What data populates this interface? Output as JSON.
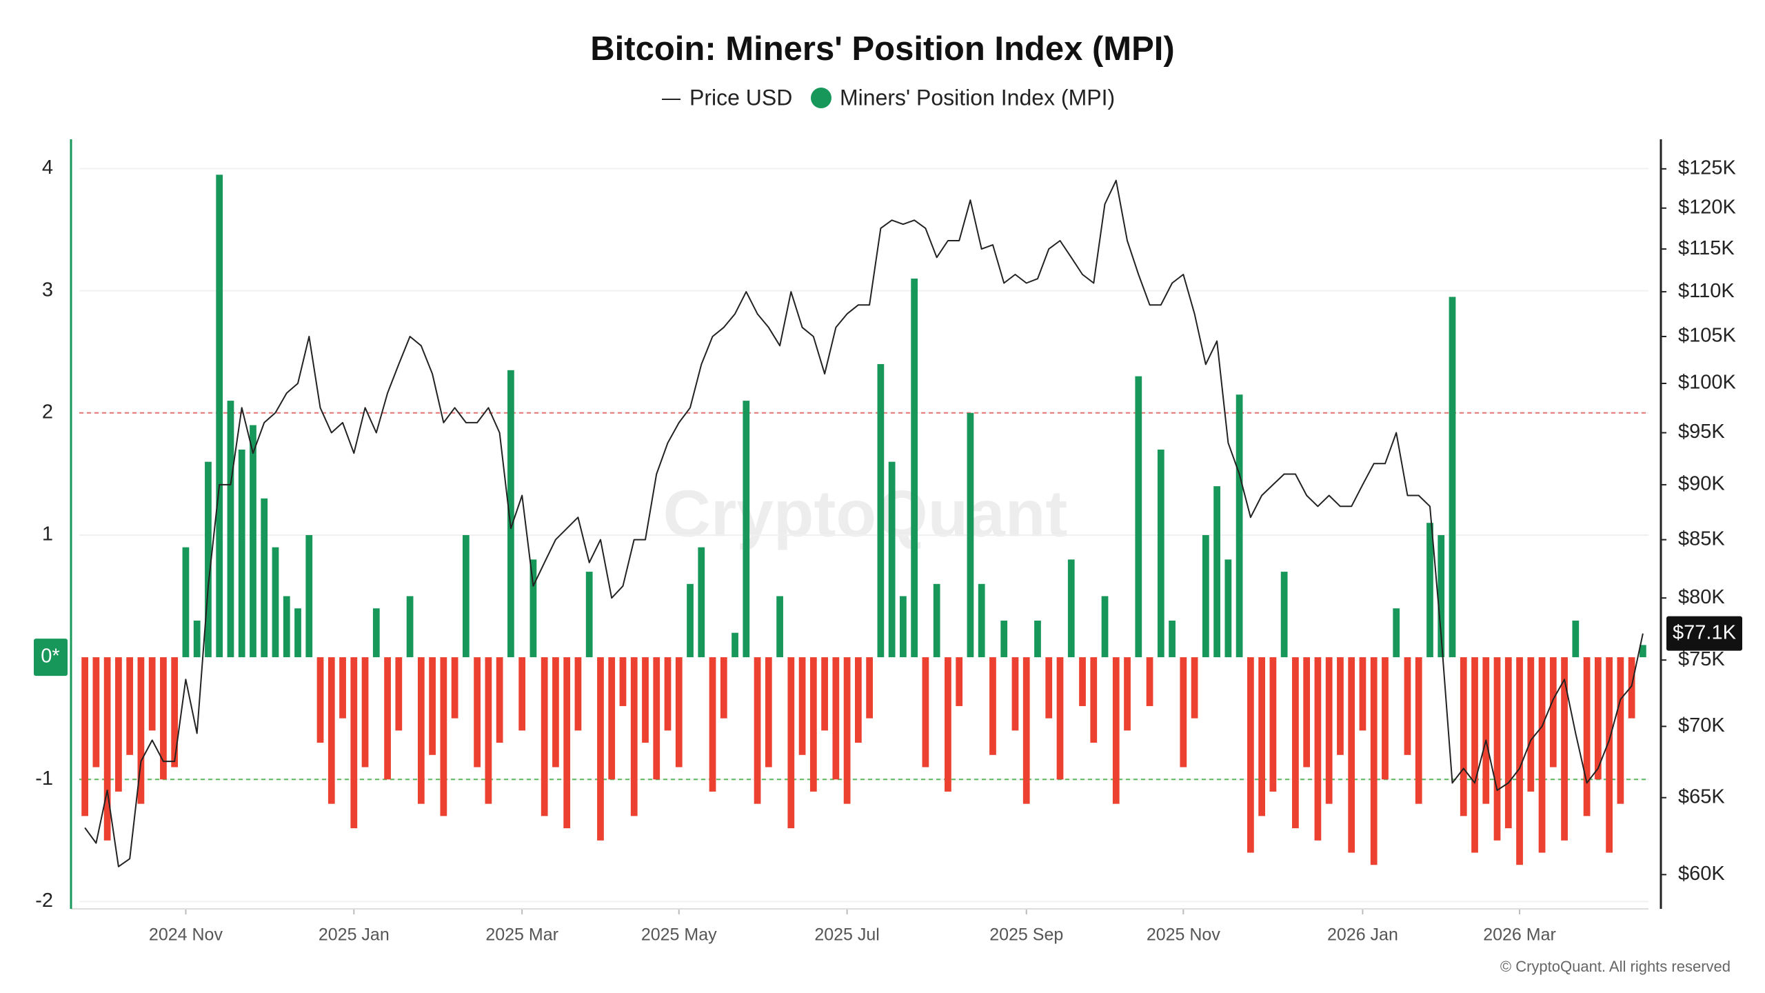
{
  "chart_data": {
    "type": "combo",
    "title": "Bitcoin: Miners' Position Index (MPI)",
    "watermark": "CryptoQuant",
    "footer": "© CryptoQuant. All rights reserved",
    "zero_label": "0*",
    "current_label": "$77.1K",
    "categories": [
      null,
      null,
      null,
      null,
      null,
      null,
      null,
      null,
      null,
      "2024 Nov",
      null,
      null,
      null,
      null,
      null,
      null,
      null,
      null,
      null,
      null,
      null,
      null,
      null,
      null,
      "2025 Jan",
      null,
      null,
      null,
      null,
      null,
      null,
      null,
      null,
      null,
      null,
      null,
      null,
      null,
      null,
      "2025 Mar",
      null,
      null,
      null,
      null,
      null,
      null,
      null,
      null,
      null,
      null,
      null,
      null,
      null,
      "2025 May",
      null,
      null,
      null,
      null,
      null,
      null,
      null,
      null,
      null,
      null,
      null,
      null,
      null,
      null,
      "2025 Jul",
      null,
      null,
      null,
      null,
      null,
      null,
      null,
      null,
      null,
      null,
      null,
      null,
      null,
      null,
      null,
      "2025 Sep",
      null,
      null,
      null,
      null,
      null,
      null,
      null,
      null,
      null,
      null,
      null,
      null,
      null,
      "2025 Nov",
      null,
      null,
      null,
      null,
      null,
      null,
      null,
      null,
      null,
      null,
      null,
      null,
      null,
      null,
      null,
      "2026 Jan",
      null,
      null,
      null,
      null,
      null,
      null,
      null,
      null,
      null,
      null,
      null,
      null,
      null,
      "2026 Mar",
      null,
      null,
      null,
      null,
      null,
      null,
      null,
      null,
      null,
      null,
      null
    ],
    "series": [
      {
        "name": "Price USD",
        "type": "line",
        "axis": "y2",
        "color": "#222222",
        "values": [
          63000,
          62000,
          65500,
          60500,
          61000,
          67500,
          69000,
          67500,
          67500,
          73500,
          69500,
          81000,
          90000,
          90000,
          97500,
          93000,
          96000,
          97000,
          99000,
          100000,
          105000,
          97500,
          95000,
          96000,
          93000,
          97500,
          95000,
          99000,
          102000,
          105000,
          104000,
          101000,
          96000,
          97500,
          96000,
          96000,
          97500,
          95000,
          86000,
          89000,
          81000,
          83000,
          85000,
          86000,
          87000,
          83000,
          85000,
          80000,
          81000,
          85000,
          85000,
          91000,
          94000,
          96000,
          97500,
          102000,
          105000,
          106000,
          107500,
          110000,
          107500,
          106000,
          104000,
          110000,
          106000,
          105000,
          101000,
          106000,
          107500,
          108500,
          108500,
          117500,
          118500,
          118000,
          118500,
          117500,
          114000,
          116000,
          116000,
          121000,
          115000,
          115500,
          111000,
          112000,
          111000,
          111500,
          115000,
          116000,
          114000,
          112000,
          111000,
          120500,
          123500,
          116000,
          112000,
          108500,
          108500,
          111000,
          112000,
          107500,
          102000,
          104500,
          94000,
          91000,
          87000,
          89000,
          90000,
          91000,
          91000,
          89000,
          88000,
          89000,
          88000,
          88000,
          90000,
          92000,
          92000,
          95000,
          89000,
          89000,
          88000,
          77000,
          66000,
          67000,
          66000,
          69000,
          65500,
          66000,
          67000,
          69000,
          70000,
          72000,
          73500,
          69500,
          66000,
          67000,
          69000,
          72000,
          73000,
          77100
        ]
      },
      {
        "name": "Miners' Position Index (MPI)",
        "type": "bar",
        "color": "#17975a",
        "negative_color": "#ec4130",
        "values": [
          -1.3,
          -0.9,
          -1.5,
          -1.1,
          -0.8,
          -1.2,
          -0.6,
          -1.0,
          -0.9,
          0.9,
          0.3,
          1.6,
          3.95,
          2.1,
          1.7,
          1.9,
          1.3,
          0.9,
          0.5,
          0.4,
          1.0,
          -0.7,
          -1.2,
          -0.5,
          -1.4,
          -0.9,
          0.4,
          -1.0,
          -0.6,
          0.5,
          -1.2,
          -0.8,
          -1.3,
          -0.5,
          1.0,
          -0.9,
          -1.2,
          -0.7,
          2.35,
          -0.6,
          0.8,
          -1.3,
          -0.9,
          -1.4,
          -0.6,
          0.7,
          -1.5,
          -1.0,
          -0.4,
          -1.3,
          -0.7,
          -1.0,
          -0.6,
          -0.9,
          0.6,
          0.9,
          -1.1,
          -0.5,
          0.2,
          2.1,
          -1.2,
          -0.9,
          0.5,
          -1.4,
          -0.8,
          -1.1,
          -0.6,
          -1.0,
          -1.2,
          -0.7,
          -0.5,
          2.4,
          1.6,
          0.5,
          3.1,
          -0.9,
          0.6,
          -1.1,
          -0.4,
          2.0,
          0.6,
          -0.8,
          0.3,
          -0.6,
          -1.2,
          0.3,
          -0.5,
          -1.0,
          0.8,
          -0.4,
          -0.7,
          0.5,
          -1.2,
          -0.6,
          2.3,
          -0.4,
          1.7,
          0.3,
          -0.9,
          -0.5,
          1.0,
          1.4,
          0.8,
          2.15,
          -1.6,
          -1.3,
          -1.1,
          0.7,
          -1.4,
          -0.9,
          -1.5,
          -1.2,
          -0.8,
          -1.6,
          -0.6,
          -1.7,
          -1.0,
          0.4,
          -0.8,
          -1.2,
          1.1,
          1.0,
          2.95,
          -1.3,
          -1.6,
          -1.2,
          -1.5,
          -1.4,
          -1.7,
          -1.1,
          -1.6,
          -0.9,
          -1.5,
          0.3,
          -1.3,
          -1.0,
          -1.6,
          -1.2,
          -0.5,
          0.1
        ]
      }
    ],
    "ylim": [
      -2.06,
      4.24
    ],
    "yticks": [
      -2,
      -1,
      1,
      2,
      3,
      4
    ],
    "y2lim": [
      57900,
      128900
    ],
    "y2log": true,
    "y2ticks": [
      {
        "value": 60000,
        "label": "$60K"
      },
      {
        "value": 65000,
        "label": "$65K"
      },
      {
        "value": 70000,
        "label": "$70K"
      },
      {
        "value": 75000,
        "label": "$75K"
      },
      {
        "value": 80000,
        "label": "$80K"
      },
      {
        "value": 85000,
        "label": "$85K"
      },
      {
        "value": 90000,
        "label": "$90K"
      },
      {
        "value": 95000,
        "label": "$95K"
      },
      {
        "value": 100000,
        "label": "$100K"
      },
      {
        "value": 105000,
        "label": "$105K"
      },
      {
        "value": 110000,
        "label": "$110K"
      },
      {
        "value": 115000,
        "label": "$115K"
      },
      {
        "value": 120000,
        "label": "$120K"
      },
      {
        "value": 125000,
        "label": "$125K"
      }
    ],
    "reference_lines": [
      {
        "value": 2,
        "color": "#e57373"
      },
      {
        "value": -1,
        "color": "#5cb85c"
      }
    ],
    "grid": true
  }
}
